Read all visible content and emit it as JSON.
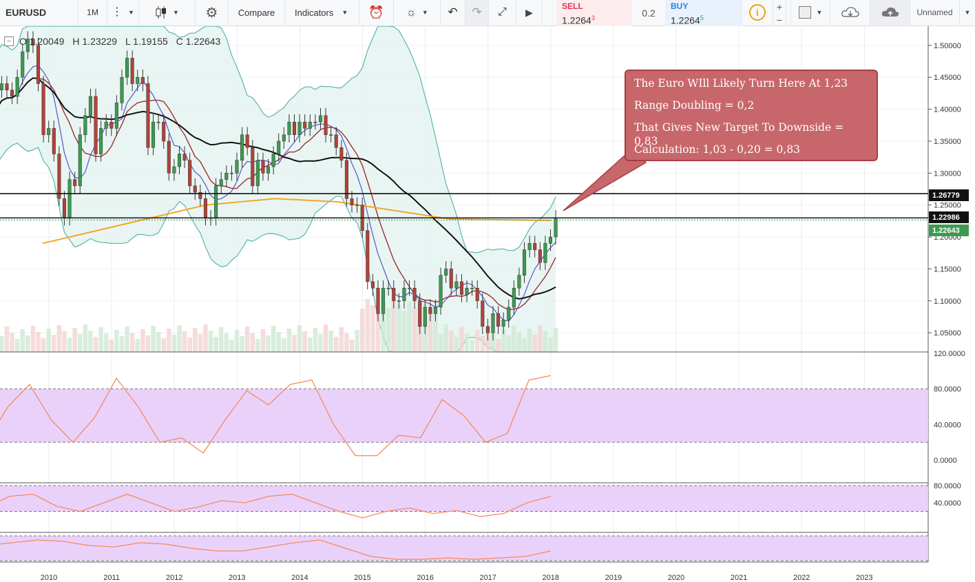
{
  "toolbar": {
    "symbol": "EURUSD",
    "interval": "1M",
    "compare_label": "Compare",
    "indicators_label": "Indicators",
    "sell_label": "SELL",
    "sell_price": "1.2264",
    "sell_price_sup": "3",
    "spread": "0.2",
    "buy_label": "BUY",
    "buy_price": "1.2264",
    "buy_price_sup": "5",
    "info_glyph": "i",
    "plus": "+",
    "minus": "−",
    "layout_name": "Unnamed",
    "icons": [
      "menu-dots-icon",
      "candles-icon",
      "gear-icon",
      "alert-clock-icon",
      "bulb-icon",
      "undo-icon",
      "redo-icon",
      "fullscreen-icon",
      "play-icon",
      "info-icon",
      "square-icon",
      "cloud-download-icon",
      "cloud-upload-icon",
      "chevron-down-icon"
    ]
  },
  "ohlc": {
    "open": "O 1.20049",
    "high": "H 1.23229",
    "low": "L 1.19155",
    "close": "C 1.22643"
  },
  "annotation": {
    "line1": "The Euro WIll Likely Turn Here At 1,23",
    "line2": "Range Doubling = 0,2",
    "line3": "That Gives New Target To Downside = 0,83",
    "line4": "Calculation: 1,03 - 0,20 = 0,83"
  },
  "price_tags": {
    "level_high": "1.26779",
    "level_mid": "1.22986",
    "last": "1.22643"
  },
  "colors": {
    "up_candle": "#3d9a52",
    "down_candle": "#b1433a",
    "bollinger": "#5ab5b0",
    "ma_black": "#111111",
    "ma_orange": "#f6a623",
    "ma_red": "#9b3030",
    "ma_blue": "#5656c8",
    "oscillator": "#f58a5c",
    "band_fill": "#e8ccf9",
    "annotation_fill": "#c8676b",
    "tag_black": "#111111",
    "tag_green": "#3d9a52"
  },
  "chart_data": {
    "type": "candlestick",
    "title": "EURUSD",
    "interval": "1M",
    "x_ticks": [
      "2010",
      "2011",
      "2012",
      "2013",
      "2014",
      "2015",
      "2016",
      "2017",
      "2018",
      "2019",
      "2020",
      "2021",
      "2022",
      "2023"
    ],
    "price_ticks": [
      "1.50000",
      "1.45000",
      "1.40000",
      "1.35000",
      "1.30000",
      "1.25000",
      "1.20000",
      "1.15000",
      "1.10000",
      "1.05000"
    ],
    "price_range": [
      1.02,
      1.53
    ],
    "horizontal_levels": [
      1.26779,
      1.22986
    ],
    "last_price": 1.22643,
    "closes": [
      1.37,
      1.43,
      1.44,
      1.43,
      1.42,
      1.45,
      1.49,
      1.51,
      1.5,
      1.44,
      1.36,
      1.37,
      1.33,
      1.26,
      1.23,
      1.29,
      1.28,
      1.36,
      1.39,
      1.42,
      1.33,
      1.37,
      1.38,
      1.37,
      1.41,
      1.45,
      1.48,
      1.44,
      1.45,
      1.44,
      1.34,
      1.38,
      1.38,
      1.35,
      1.3,
      1.31,
      1.33,
      1.32,
      1.28,
      1.27,
      1.26,
      1.23,
      1.23,
      1.28,
      1.29,
      1.3,
      1.3,
      1.32,
      1.36,
      1.34,
      1.28,
      1.32,
      1.3,
      1.31,
      1.33,
      1.35,
      1.36,
      1.38,
      1.36,
      1.38,
      1.37,
      1.38,
      1.38,
      1.39,
      1.36,
      1.36,
      1.34,
      1.32,
      1.26,
      1.25,
      1.25,
      1.21,
      1.13,
      1.12,
      1.08,
      1.12,
      1.12,
      1.1,
      1.1,
      1.12,
      1.12,
      1.1,
      1.06,
      1.09,
      1.08,
      1.09,
      1.14,
      1.15,
      1.12,
      1.13,
      1.11,
      1.12,
      1.12,
      1.1,
      1.06,
      1.05,
      1.08,
      1.06,
      1.07,
      1.09,
      1.12,
      1.14,
      1.18,
      1.19,
      1.18,
      1.16,
      1.19,
      1.2,
      1.23
    ],
    "ma_orange": [
      1.19,
      1.22,
      1.25,
      1.26,
      1.255,
      1.228,
      1.226
    ],
    "oscillator_1": [
      20,
      60,
      85,
      45,
      20,
      48,
      92,
      60,
      20,
      25,
      8,
      45,
      78,
      62,
      85,
      90,
      40,
      5,
      5,
      28,
      25,
      68,
      50,
      20,
      30,
      90,
      95
    ],
    "oscillator_1_ticks": [
      "120.0000",
      "80.0000",
      "40.0000",
      "0.0000"
    ],
    "oscillator_2_ticks": [
      "80.0000",
      "40.0000"
    ]
  }
}
